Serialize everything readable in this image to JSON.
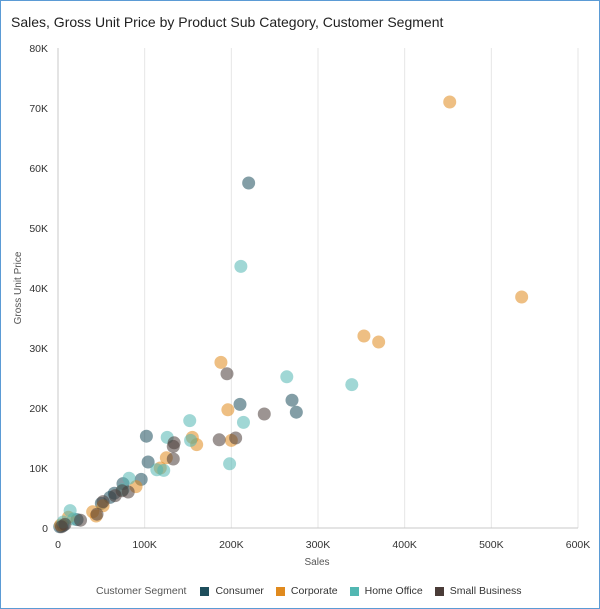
{
  "chart_data": {
    "type": "scatter",
    "title": "Sales, Gross Unit Price by Product Sub Category, Customer Segment",
    "xlabel": "Sales",
    "ylabel": "Gross Unit Price",
    "xlim": [
      0,
      600000
    ],
    "ylim": [
      0,
      80000
    ],
    "x_ticks": [
      0,
      100000,
      200000,
      300000,
      400000,
      500000,
      600000
    ],
    "x_tick_labels": [
      "0",
      "100K",
      "200K",
      "300K",
      "400K",
      "500K",
      "600K"
    ],
    "y_ticks": [
      0,
      10000,
      20000,
      30000,
      40000,
      50000,
      60000,
      70000,
      80000
    ],
    "y_tick_labels": [
      "0",
      "10K",
      "20K",
      "30K",
      "40K",
      "50K",
      "60K",
      "70K",
      "80K"
    ],
    "legend_title": "Customer Segment",
    "legend_position": "bottom",
    "series": [
      {
        "name": "Consumer",
        "color": "#1e4e5c",
        "points": [
          [
            220000,
            57500
          ],
          [
            275000,
            19300
          ],
          [
            270000,
            21300
          ],
          [
            210000,
            20600
          ],
          [
            102000,
            15300
          ],
          [
            104000,
            11000
          ],
          [
            96000,
            8100
          ],
          [
            75000,
            7400
          ],
          [
            65000,
            5800
          ],
          [
            60000,
            5100
          ],
          [
            50000,
            4100
          ],
          [
            22000,
            1400
          ],
          [
            6000,
            400
          ],
          [
            2000,
            200
          ]
        ]
      },
      {
        "name": "Corporate",
        "color": "#e08a1e",
        "points": [
          [
            452000,
            71000
          ],
          [
            535000,
            38500
          ],
          [
            353000,
            32000
          ],
          [
            370000,
            31000
          ],
          [
            188000,
            27600
          ],
          [
            196000,
            19700
          ],
          [
            155000,
            15100
          ],
          [
            160000,
            13900
          ],
          [
            200000,
            14600
          ],
          [
            125000,
            11700
          ],
          [
            118000,
            10000
          ],
          [
            90000,
            6900
          ],
          [
            52000,
            3700
          ],
          [
            40000,
            2700
          ],
          [
            44000,
            2000
          ],
          [
            12000,
            1800
          ],
          [
            3000,
            500
          ]
        ]
      },
      {
        "name": "Home Office",
        "color": "#52b7b2",
        "points": [
          [
            211000,
            43600
          ],
          [
            264000,
            25200
          ],
          [
            339000,
            23900
          ],
          [
            152000,
            17900
          ],
          [
            214000,
            17600
          ],
          [
            126000,
            15100
          ],
          [
            153000,
            14600
          ],
          [
            198000,
            10700
          ],
          [
            114000,
            9700
          ],
          [
            122000,
            9600
          ],
          [
            82000,
            8300
          ],
          [
            75000,
            6400
          ],
          [
            14000,
            2900
          ],
          [
            18000,
            1500
          ],
          [
            6000,
            1000
          ]
        ]
      },
      {
        "name": "Small Business",
        "color": "#4a3c38",
        "points": [
          [
            195000,
            25700
          ],
          [
            238000,
            19000
          ],
          [
            186000,
            14700
          ],
          [
            205000,
            15000
          ],
          [
            134000,
            14200
          ],
          [
            133000,
            13600
          ],
          [
            133000,
            11500
          ],
          [
            74000,
            6200
          ],
          [
            81000,
            6000
          ],
          [
            66000,
            5400
          ],
          [
            52000,
            4400
          ],
          [
            45000,
            2300
          ],
          [
            26000,
            1300
          ],
          [
            8000,
            600
          ],
          [
            4000,
            200
          ]
        ]
      }
    ]
  }
}
